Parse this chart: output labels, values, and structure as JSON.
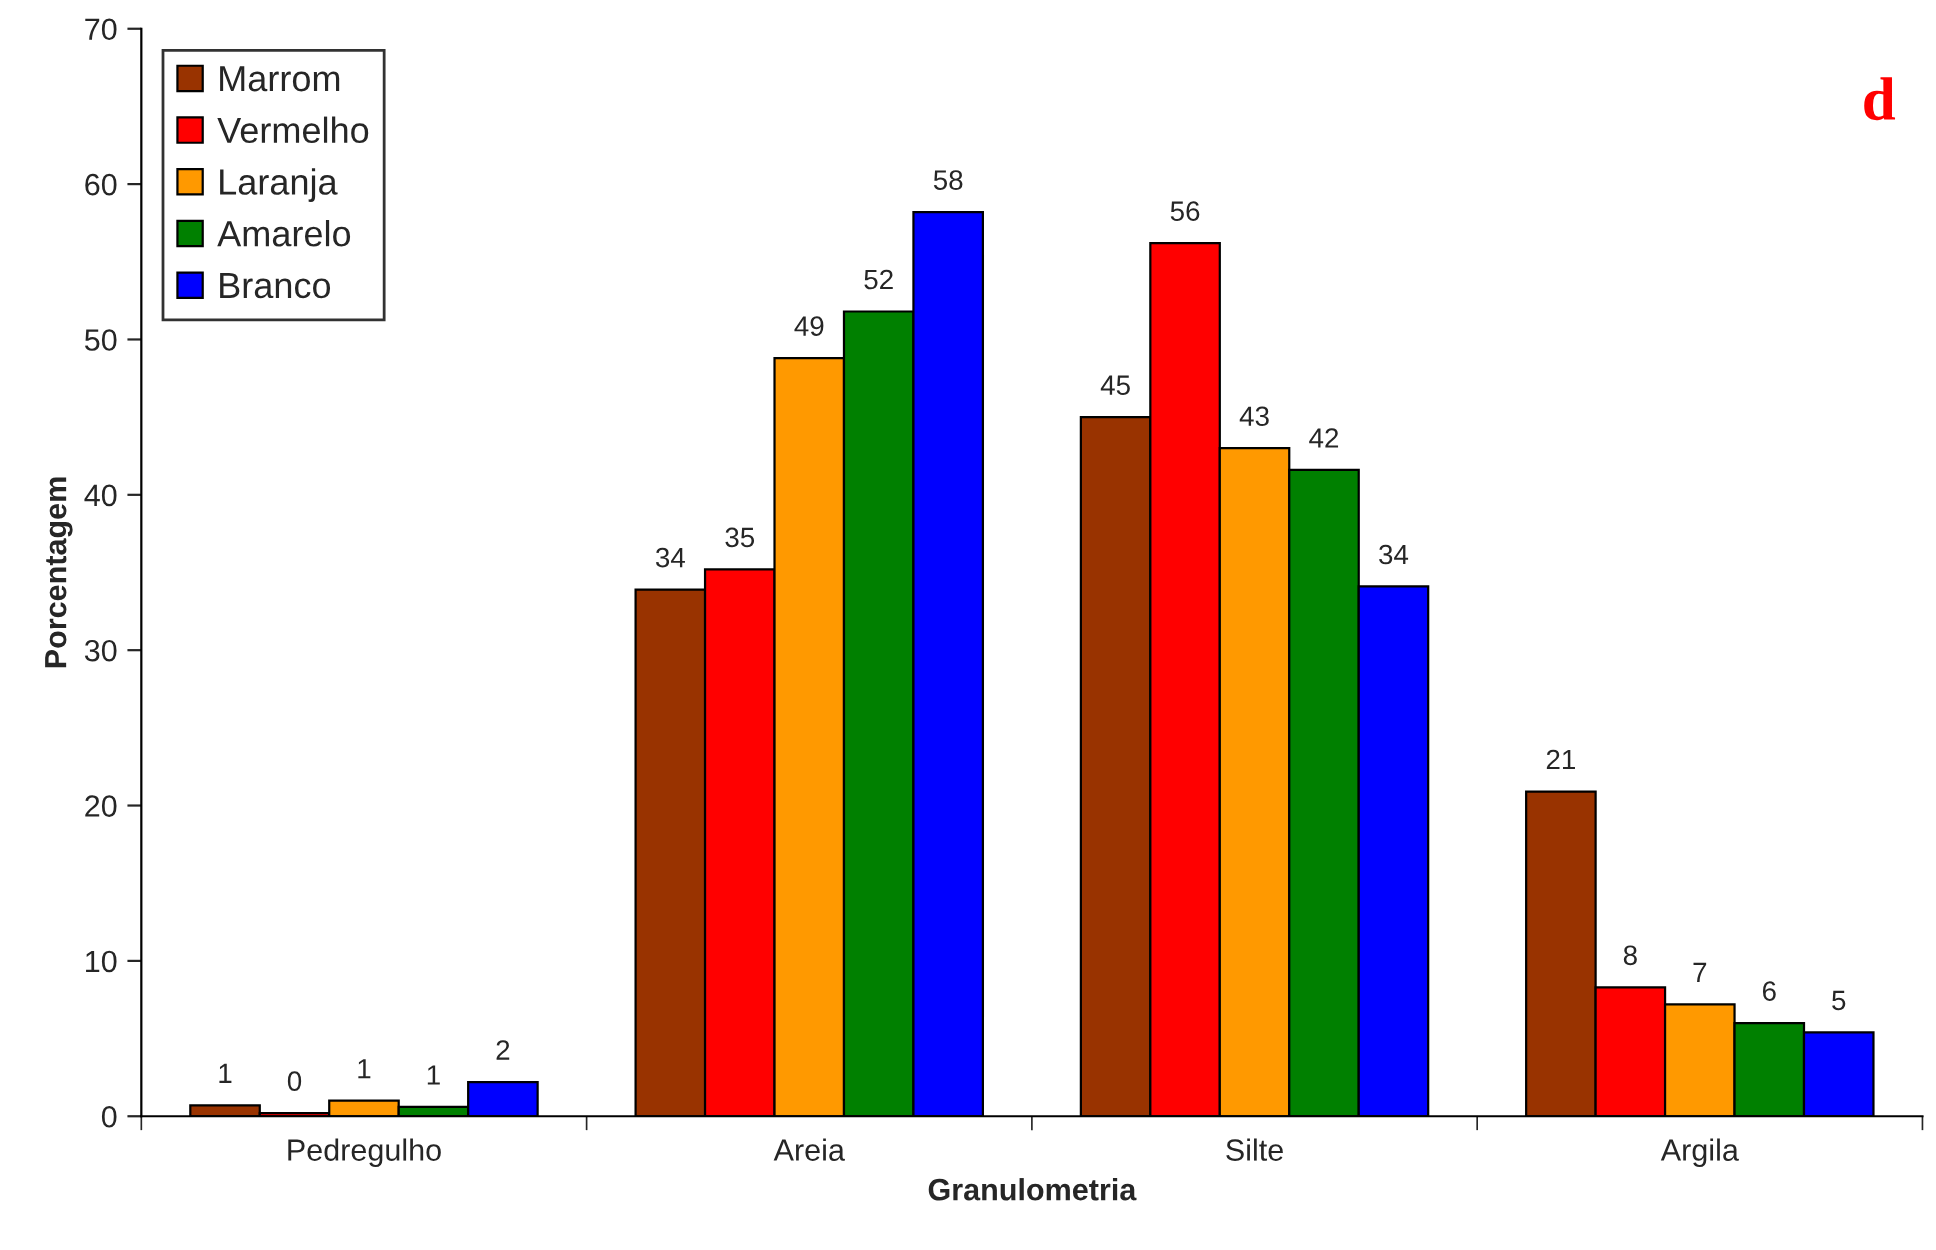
{
  "chart_data": {
    "type": "bar",
    "xlabel": "Granulometria",
    "ylabel": "Porcentagem",
    "categories": [
      "Pedregulho",
      "Areia",
      "Silte",
      "Argila"
    ],
    "series": [
      {
        "name": "Marrom",
        "color": "#993300",
        "values": [
          0.7,
          33.9,
          45.0,
          20.9
        ],
        "value_labels": [
          "1",
          "34",
          "45",
          "21"
        ]
      },
      {
        "name": "Vermelho",
        "color": "#ff0000",
        "values": [
          0.2,
          35.2,
          56.2,
          8.3
        ],
        "value_labels": [
          "0",
          "35",
          "56",
          "8"
        ]
      },
      {
        "name": "Laranja",
        "color": "#ff9900",
        "values": [
          1.0,
          48.8,
          43.0,
          7.2
        ],
        "value_labels": [
          "1",
          "49",
          "43",
          "7"
        ]
      },
      {
        "name": "Amarelo",
        "color": "#008000",
        "values": [
          0.6,
          51.8,
          41.6,
          6.0
        ],
        "value_labels": [
          "1",
          "52",
          "42",
          "6"
        ]
      },
      {
        "name": "Branco",
        "color": "#0000ff",
        "values": [
          2.2,
          58.2,
          34.1,
          5.4
        ],
        "value_labels": [
          "2",
          "58",
          "34",
          "5"
        ]
      }
    ],
    "ylim": [
      0,
      70
    ],
    "yticks": [
      0,
      10,
      20,
      30,
      40,
      50,
      60,
      70
    ],
    "legend": "top left",
    "annotations": [
      "d"
    ]
  }
}
